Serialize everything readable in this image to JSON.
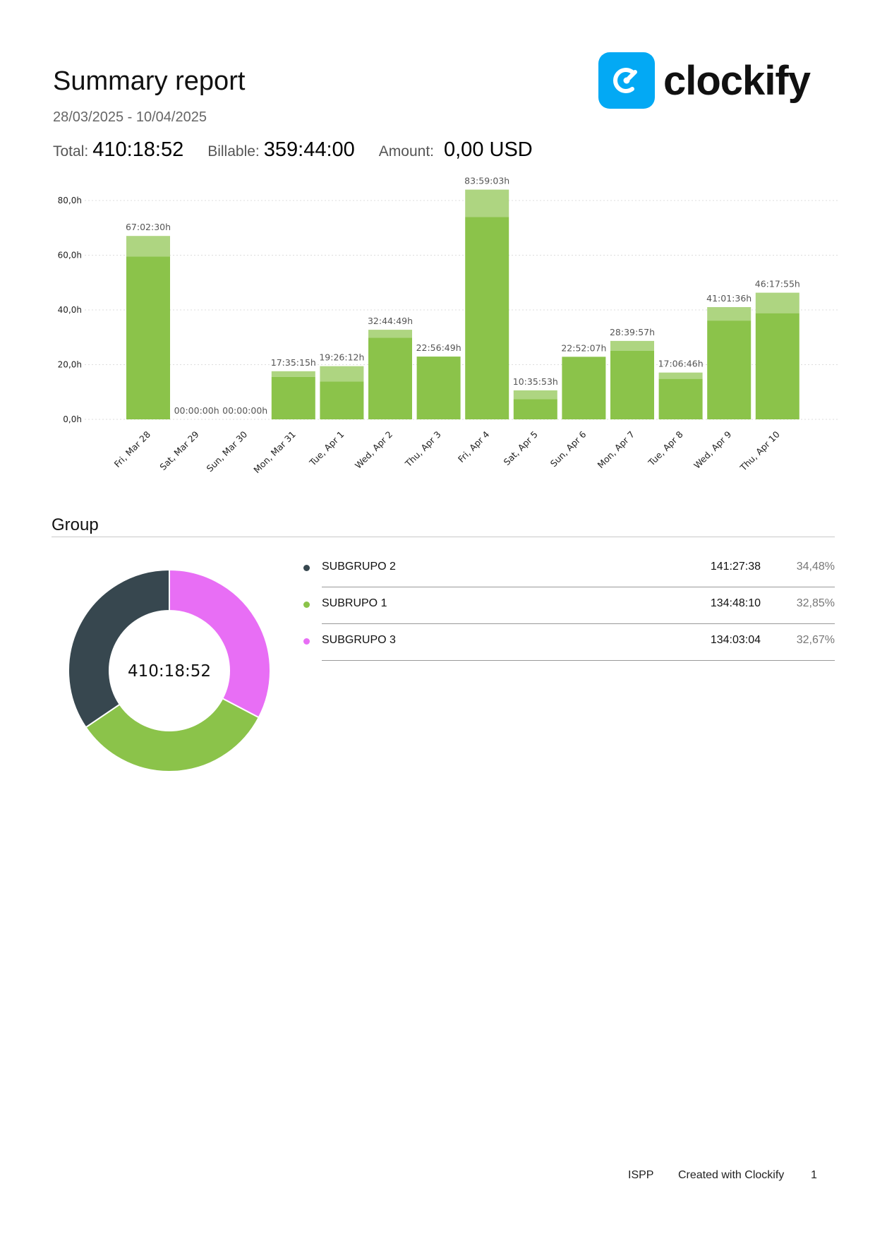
{
  "report": {
    "title": "Summary report",
    "date_range": "28/03/2025 - 10/04/2025",
    "total_label": "Total:",
    "total_value": "410:18:52",
    "billable_label": "Billable:",
    "billable_value": "359:44:00",
    "amount_label": "Amount:",
    "amount_value": "0,00 USD"
  },
  "brand": {
    "name": "clockify",
    "icon": "clockify-logo-icon",
    "color": "#03a9f4"
  },
  "chart_data": {
    "type": "bar",
    "stacked": true,
    "categories": [
      "Fri, Mar 28",
      "Sat, Mar 29",
      "Sun, Mar 30",
      "Mon, Mar 31",
      "Tue, Apr 1",
      "Wed, Apr 2",
      "Thu, Apr 3",
      "Fri, Apr 4",
      "Sat, Apr 5",
      "Sun, Apr 6",
      "Mon, Apr 7",
      "Tue, Apr 8",
      "Wed, Apr 9",
      "Thu, Apr 10"
    ],
    "totals": [
      67.04,
      0,
      0,
      17.59,
      19.44,
      32.75,
      22.95,
      83.98,
      10.6,
      22.87,
      28.67,
      17.11,
      41.03,
      46.3
    ],
    "billable": [
      59.5,
      0,
      0,
      15.5,
      13.8,
      29.8,
      22.95,
      74.0,
      7.4,
      22.87,
      25.1,
      14.8,
      36.1,
      38.8
    ],
    "data_labels": [
      "67:02:30h",
      "00:00:00h",
      "00:00:00h",
      "17:35:15h",
      "19:26:12h",
      "32:44:49h",
      "22:56:49h",
      "83:59:03h",
      "10:35:53h",
      "22:52:07h",
      "28:39:57h",
      "17:06:46h",
      "41:01:36h",
      "46:17:55h"
    ],
    "y_ticks": [
      "0,0h",
      "20,0h",
      "40,0h",
      "60,0h",
      "80,0h"
    ],
    "ylim": [
      0,
      80
    ],
    "grid": true,
    "colors": {
      "billable": "#8bc34a",
      "non_billable": "#aed581",
      "grid": "#dddddd"
    }
  },
  "group": {
    "title": "Group",
    "total": "410:18:52",
    "items": [
      {
        "name": "SUBGRUPO 2",
        "duration": "141:27:38",
        "percent": "34,48%",
        "value": 34.48,
        "color": "#37474f"
      },
      {
        "name": "SUBRUPO 1",
        "duration": "134:48:10",
        "percent": "32,85%",
        "value": 32.85,
        "color": "#8bc34a"
      },
      {
        "name": "SUBGRUPO 3",
        "duration": "134:03:04",
        "percent": "32,67%",
        "value": 32.67,
        "color": "#e86ef5"
      }
    ]
  },
  "footer": {
    "workspace": "ISPP",
    "created": "Created with Clockify",
    "page": "1"
  }
}
